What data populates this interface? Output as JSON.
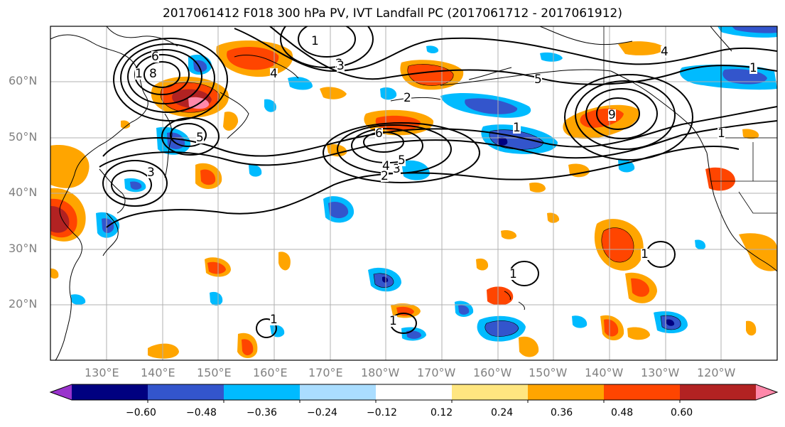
{
  "title": "2017061412 F018 300 hPa PV, IVT Landfall PC (2017061712 - 2017061912)",
  "lat_labels": [
    "60°N",
    "50°N",
    "40°N",
    "30°N",
    "20°N"
  ],
  "lon_labels": [
    "130°E",
    "140°E",
    "150°E",
    "160°E",
    "170°E",
    "180°W",
    "170°W",
    "160°W",
    "150°W",
    "140°W",
    "130°W",
    "120°W"
  ],
  "colorbar": {
    "tick_labels": [
      "−0.60",
      "−0.48",
      "−0.36",
      "−0.24",
      "−0.12",
      "0.12",
      "0.24",
      "0.36",
      "0.48",
      "0.60"
    ],
    "colors": [
      "#9933cc",
      "#000080",
      "#3355cc",
      "#00bbff",
      "#aaddff",
      "#ffffff",
      "#ffe680",
      "#ffa500",
      "#ff4500",
      "#b22222",
      "#ff88aa"
    ],
    "extend": "both"
  },
  "contour_labels": [
    "6",
    "8",
    "5",
    "4",
    "3",
    "2",
    "1",
    "4",
    "3",
    "2",
    "5",
    "1",
    "9",
    "2",
    "1",
    "4",
    "3",
    "5",
    "1",
    "6",
    "1",
    "1",
    "1",
    "1",
    "1"
  ]
}
